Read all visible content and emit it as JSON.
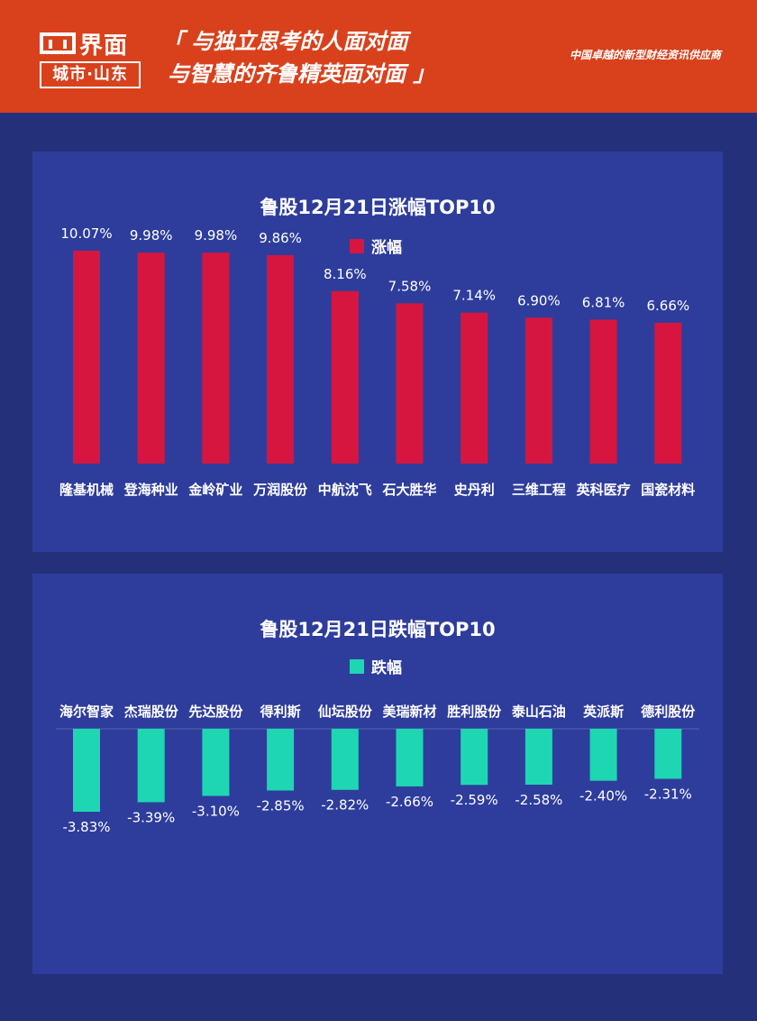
{
  "header": {
    "logo_main": "界面",
    "logo_sub": "城市·山东",
    "slogan_line1": "「 与独立思考的人面对面",
    "slogan_line2": "与智慧的齐鲁精英面对面 」",
    "tagline": "中国卓越的新型财经资讯供应商"
  },
  "colors": {
    "header_bg": "#d8411c",
    "page_bg": "#25307a",
    "panel_bg": "#2e3d9c",
    "gain": "#d7163f",
    "loss": "#1fd6b2"
  },
  "chart_data": [
    {
      "type": "bar",
      "title": "鲁股12月21日涨幅TOP10",
      "categories": [
        "隆基机械",
        "登海种业",
        "金岭矿业",
        "万润股份",
        "中航沈飞",
        "石大胜华",
        "史丹利",
        "三维工程",
        "英科医疗",
        "国瓷材料"
      ],
      "series": [
        {
          "name": "涨幅",
          "values": [
            10.07,
            9.98,
            9.98,
            9.86,
            8.16,
            7.58,
            7.14,
            6.9,
            6.81,
            6.66
          ]
        }
      ],
      "labels": [
        "10.07%",
        "9.98%",
        "9.98%",
        "9.86%",
        "8.16%",
        "7.58%",
        "7.14%",
        "6.90%",
        "6.81%",
        "6.66%"
      ],
      "ylim": [
        0,
        10.07
      ],
      "legend": "top-center"
    },
    {
      "type": "bar",
      "title": "鲁股12月21日跌幅TOP10",
      "categories": [
        "海尔智家",
        "杰瑞股份",
        "先达股份",
        "得利斯",
        "仙坛股份",
        "美瑞新材",
        "胜利股份",
        "泰山石油",
        "英派斯",
        "德利股份"
      ],
      "series": [
        {
          "name": "跌幅",
          "values": [
            -3.83,
            -3.39,
            -3.1,
            -2.85,
            -2.82,
            -2.66,
            -2.59,
            -2.58,
            -2.4,
            -2.31
          ]
        }
      ],
      "labels": [
        "-3.83%",
        "-3.39%",
        "-3.10%",
        "-2.85%",
        "-2.82%",
        "-2.66%",
        "-2.59%",
        "-2.58%",
        "-2.40%",
        "-2.31%"
      ],
      "ylim": [
        -3.83,
        0
      ],
      "legend": "top-center"
    }
  ]
}
